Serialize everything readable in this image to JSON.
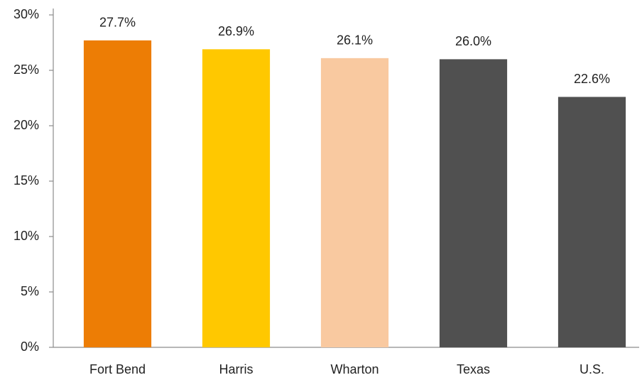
{
  "chart_data": {
    "type": "bar",
    "categories": [
      "Fort Bend",
      "Harris",
      "Wharton",
      "Texas",
      "U.S."
    ],
    "values": [
      27.7,
      26.9,
      26.1,
      26.0,
      22.6
    ],
    "value_labels": [
      "27.7%",
      "26.9%",
      "26.1%",
      "26.0%",
      "22.6%"
    ],
    "colors": [
      "#ed7d05",
      "#ffc800",
      "#f9c9a0",
      "#505050",
      "#505050"
    ],
    "ylim": [
      0,
      30
    ],
    "yticks": [
      {
        "value": 0,
        "label": "0%"
      },
      {
        "value": 5,
        "label": "5%"
      },
      {
        "value": 10,
        "label": "10%"
      },
      {
        "value": 15,
        "label": "15%"
      },
      {
        "value": 20,
        "label": "20%"
      },
      {
        "value": 25,
        "label": "25%"
      },
      {
        "value": 30,
        "label": "30%"
      }
    ],
    "grid": false
  }
}
